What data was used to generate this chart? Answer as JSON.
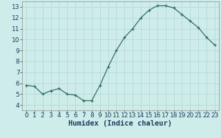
{
  "x": [
    0,
    1,
    2,
    3,
    4,
    5,
    6,
    7,
    8,
    9,
    10,
    11,
    12,
    13,
    14,
    15,
    16,
    17,
    18,
    19,
    20,
    21,
    22,
    23
  ],
  "y": [
    5.8,
    5.7,
    5.0,
    5.3,
    5.5,
    5.0,
    4.9,
    4.4,
    4.4,
    5.8,
    7.5,
    9.0,
    10.2,
    11.0,
    12.0,
    12.7,
    13.1,
    13.1,
    12.9,
    12.3,
    11.7,
    11.1,
    10.2,
    9.5
  ],
  "title": "",
  "xlabel": "Humidex (Indice chaleur)",
  "ylabel": "",
  "xlim": [
    -0.5,
    23.5
  ],
  "ylim": [
    3.5,
    13.5
  ],
  "yticks": [
    4,
    5,
    6,
    7,
    8,
    9,
    10,
    11,
    12,
    13
  ],
  "xticks": [
    0,
    1,
    2,
    3,
    4,
    5,
    6,
    7,
    8,
    9,
    10,
    11,
    12,
    13,
    14,
    15,
    16,
    17,
    18,
    19,
    20,
    21,
    22,
    23
  ],
  "line_color": "#2d6b5e",
  "marker": "+",
  "bg_color": "#ceecea",
  "grid_color": "#b8dbd8",
  "axis_bg": "#ceecea",
  "xlabel_color": "#1a3a5c",
  "label_fontsize": 7.5,
  "tick_fontsize": 6.5
}
